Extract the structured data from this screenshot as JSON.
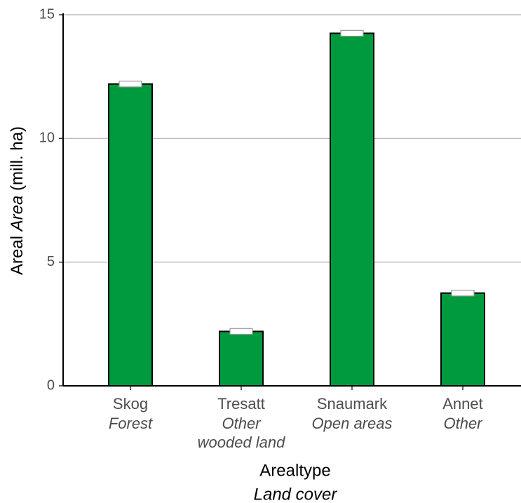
{
  "chart_data": {
    "type": "bar",
    "categories": [
      "Skog",
      "Tresatt",
      "Snaumark",
      "Annet"
    ],
    "category_translations": [
      [
        "Forest"
      ],
      [
        "Other",
        "wooded land"
      ],
      [
        "Open areas"
      ],
      [
        "Other"
      ]
    ],
    "values": [
      12.2,
      2.2,
      14.25,
      3.75
    ],
    "errors": [
      0.06,
      0.06,
      0.06,
      0.06
    ],
    "color": "#009a3e",
    "ylim": [
      0,
      15
    ],
    "yticks": [
      0,
      5,
      10,
      15
    ],
    "grid": true,
    "y_label": {
      "text": "Areal",
      "italic": "Area",
      "unit": "(mill. ha)"
    },
    "x_label": "Arealtype",
    "x_label_translation": "Land cover"
  }
}
